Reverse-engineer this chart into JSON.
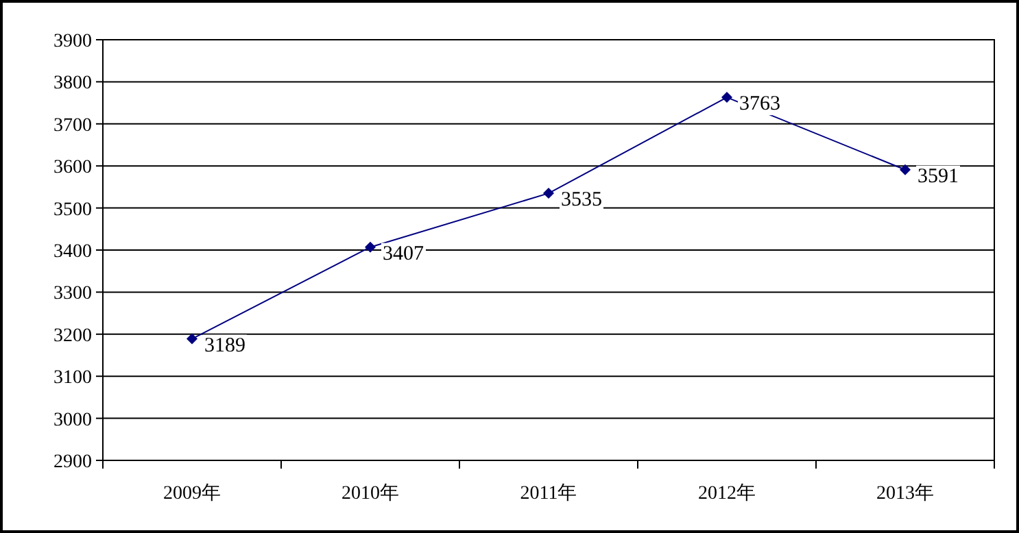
{
  "chart_data": {
    "type": "line",
    "categories": [
      "2009年",
      "2010年",
      "2011年",
      "2012年",
      "2013年"
    ],
    "series": [
      {
        "color": "#000080",
        "values": [
          3189,
          3407,
          3535,
          3763,
          3591
        ]
      }
    ],
    "ylim": [
      2900,
      3900
    ],
    "yticks": [
      2900,
      3000,
      3100,
      3200,
      3300,
      3400,
      3500,
      3600,
      3700,
      3800,
      3900
    ],
    "grid": "y",
    "marker": "diamond",
    "line_style": "solid",
    "data_labels": true
  }
}
